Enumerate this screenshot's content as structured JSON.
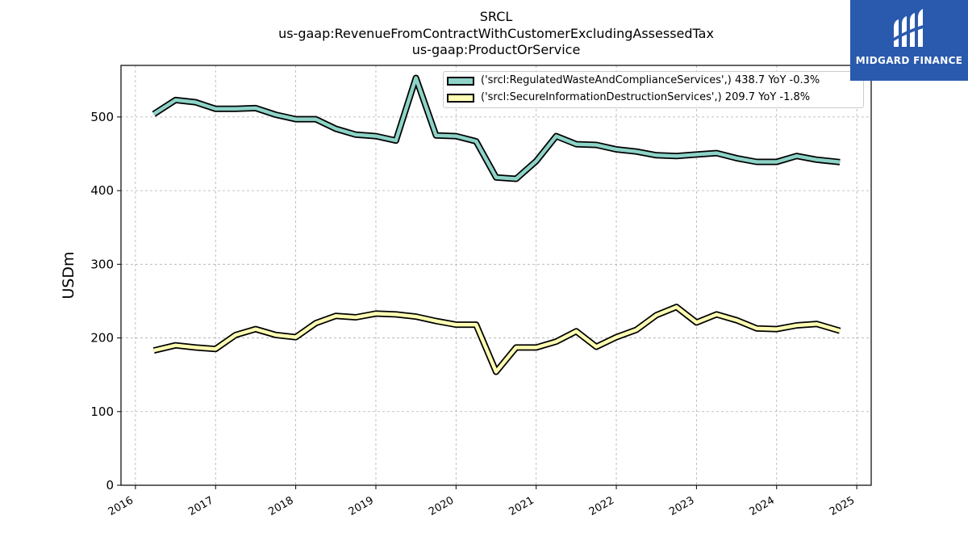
{
  "title": {
    "line1": "SRCL",
    "line2": "us-gaap:RevenueFromContractWithCustomerExcludingAssessedTax",
    "line3": "us-gaap:ProductOrService"
  },
  "logo": {
    "text": "MIDGARD FINANCE",
    "icon": "midgard-logo-icon",
    "bg_color": "#2a5aad"
  },
  "chart_data": {
    "type": "line",
    "ylabel": "USDm",
    "xlabel": "",
    "ylim": [
      0,
      570
    ],
    "xlim": [
      2015.82,
      2025.18
    ],
    "yticks": [
      0,
      100,
      200,
      300,
      400,
      500
    ],
    "xticks": [
      2016,
      2017,
      2018,
      2019,
      2020,
      2021,
      2022,
      2023,
      2024,
      2025
    ],
    "xtick_labels": [
      "2016",
      "2017",
      "2018",
      "2019",
      "2020",
      "2021",
      "2022",
      "2023",
      "2024",
      "2025"
    ],
    "grid": true,
    "legend_position": "top-right",
    "series": [
      {
        "name": "('srcl:RegulatedWasteAndComplianceServices',) 438.7 YoY -0.3%",
        "color": "#8dd3c7",
        "x": [
          2016.23,
          2016.5,
          2016.75,
          2017.0,
          2017.25,
          2017.5,
          2017.75,
          2018.0,
          2018.25,
          2018.5,
          2018.75,
          2019.0,
          2019.25,
          2019.5,
          2019.75,
          2020.0,
          2020.25,
          2020.5,
          2020.75,
          2021.0,
          2021.25,
          2021.5,
          2021.75,
          2022.0,
          2022.25,
          2022.5,
          2022.75,
          2023.0,
          2023.25,
          2023.5,
          2023.75,
          2024.0,
          2024.25,
          2024.5,
          2024.79
        ],
        "values": [
          504,
          523,
          520,
          511,
          511,
          512,
          503,
          497,
          497,
          484,
          476,
          474,
          468,
          553,
          475,
          474,
          467,
          418,
          416,
          440,
          474,
          463,
          462,
          456,
          453,
          448,
          447,
          449,
          451,
          444,
          439,
          439,
          447,
          442,
          438.7
        ]
      },
      {
        "name": "('srcl:SecureInformationDestructionServices',) 209.7 YoY -1.8%",
        "color": "#ffffb3",
        "x": [
          2016.23,
          2016.5,
          2016.75,
          2017.0,
          2017.25,
          2017.5,
          2017.75,
          2018.0,
          2018.25,
          2018.5,
          2018.75,
          2019.0,
          2019.25,
          2019.5,
          2019.75,
          2020.0,
          2020.25,
          2020.5,
          2020.75,
          2021.0,
          2021.25,
          2021.5,
          2021.75,
          2022.0,
          2022.25,
          2022.5,
          2022.75,
          2023.0,
          2023.25,
          2023.5,
          2023.75,
          2024.0,
          2024.25,
          2024.5,
          2024.79
        ],
        "values": [
          183,
          190,
          187,
          185,
          204,
          212,
          204,
          201,
          220,
          230,
          228,
          233,
          232,
          229,
          223,
          218,
          218,
          154,
          187,
          187,
          195,
          209,
          188,
          201,
          211,
          231,
          242,
          221,
          232,
          224,
          213,
          212,
          217,
          219,
          209.7
        ]
      }
    ]
  }
}
